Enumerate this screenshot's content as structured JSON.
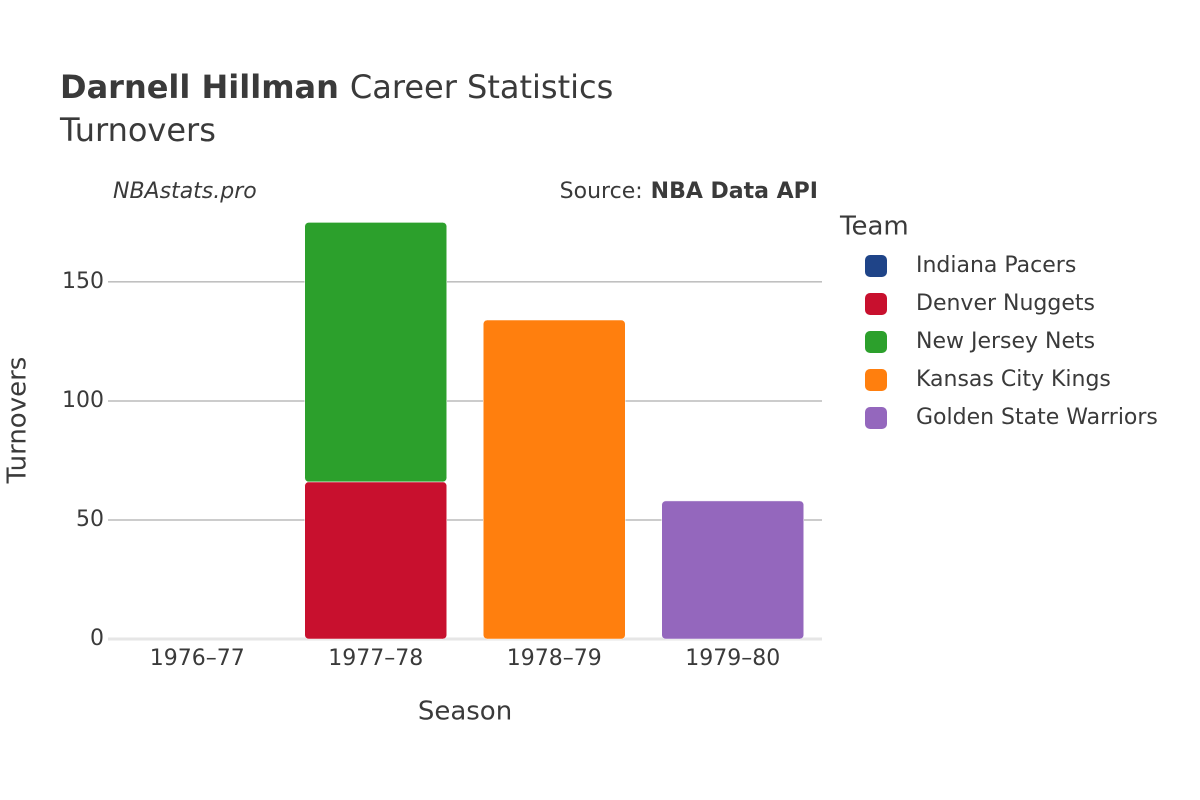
{
  "chart_data": {
    "type": "stacked_bar",
    "title": "Darnell Hillman",
    "title_suffix": "Career Statistics",
    "subtitle": "Turnovers",
    "watermark": "NBAstats.pro",
    "source_label": "Source:",
    "source": "NBA Data API",
    "x_label": "Season",
    "y_label": "Turnovers",
    "legend_title": "Team",
    "categories": [
      "1976–77",
      "1977–78",
      "1978–79",
      "1979–80"
    ],
    "series": [
      {
        "name": "Indiana Pacers",
        "color": "#1f4488",
        "values": [
          0,
          null,
          null,
          null
        ]
      },
      {
        "name": "Denver Nuggets",
        "color": "#c8102e",
        "values": [
          null,
          66,
          null,
          null
        ]
      },
      {
        "name": "New Jersey Nets",
        "color": "#2ca02c",
        "values": [
          null,
          109,
          null,
          null
        ]
      },
      {
        "name": "Kansas City Kings",
        "color": "#ff7f0e",
        "values": [
          null,
          null,
          134,
          null
        ]
      },
      {
        "name": "Golden State Warriors",
        "color": "#9467bd",
        "values": [
          null,
          null,
          null,
          58
        ]
      }
    ],
    "ylim": [
      0,
      184
    ],
    "yticks": [
      0,
      50,
      100,
      150
    ],
    "grid": true
  }
}
